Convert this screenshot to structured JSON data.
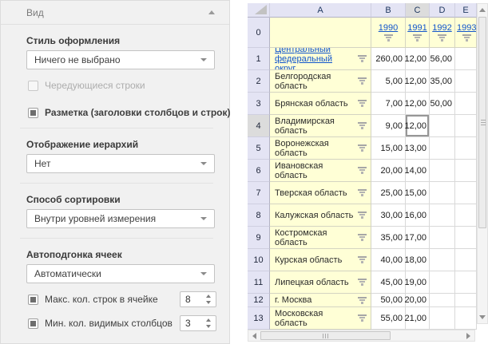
{
  "panel": {
    "title": "Вид",
    "sections": [
      {
        "label": "Стиль оформления",
        "dropdown_value": "Ничего не выбрано",
        "checkboxes": [
          {
            "label": "Чередующиеся строки",
            "checked": false,
            "disabled": true
          },
          {
            "label": "Разметка (заголовки столбцов и строк)",
            "checked": true,
            "disabled": false
          }
        ]
      },
      {
        "label": "Отображение иерархий",
        "dropdown_value": "Нет"
      },
      {
        "label": "Способ сортировки",
        "dropdown_value": "Внутри уровней измерения"
      },
      {
        "label": "Автоподгонка ячеек",
        "dropdown_value": "Автоматически",
        "spinners": [
          {
            "label": "Макс. кол. строк в ячейке",
            "value": "8",
            "checked": true
          },
          {
            "label": "Мин. кол. видимых столбцов",
            "value": "3",
            "checked": true
          }
        ]
      }
    ]
  },
  "table": {
    "column_letters": [
      "A",
      "B",
      "C",
      "D",
      "E"
    ],
    "selected_column": "C",
    "selected_row_number": "4",
    "selected_cell": {
      "row": "4",
      "col": "C"
    },
    "row_zero_number": "0",
    "year_links": [
      "1990",
      "1991",
      "1992",
      "1993"
    ],
    "rows": [
      {
        "num": "1",
        "name": "Центральный федеральный округ",
        "is_link": true,
        "values": [
          "260,00",
          "12,00",
          "56,00",
          ""
        ]
      },
      {
        "num": "2",
        "name": "Белгородская область",
        "is_link": false,
        "values": [
          "5,00",
          "12,00",
          "35,00",
          ""
        ]
      },
      {
        "num": "3",
        "name": "Брянская область",
        "is_link": false,
        "values": [
          "7,00",
          "12,00",
          "50,00",
          ""
        ]
      },
      {
        "num": "4",
        "name": "Владимирская область",
        "is_link": false,
        "values": [
          "9,00",
          "12,00",
          "",
          ""
        ]
      },
      {
        "num": "5",
        "name": "Воронежская область",
        "is_link": false,
        "values": [
          "15,00",
          "13,00",
          "",
          ""
        ]
      },
      {
        "num": "6",
        "name": "Ивановская область",
        "is_link": false,
        "values": [
          "20,00",
          "14,00",
          "",
          ""
        ]
      },
      {
        "num": "7",
        "name": "Тверская область",
        "is_link": false,
        "values": [
          "25,00",
          "15,00",
          "",
          ""
        ]
      },
      {
        "num": "8",
        "name": "Калужская область",
        "is_link": false,
        "values": [
          "30,00",
          "16,00",
          "",
          ""
        ]
      },
      {
        "num": "9",
        "name": "Костромская область",
        "is_link": false,
        "values": [
          "35,00",
          "17,00",
          "",
          ""
        ]
      },
      {
        "num": "10",
        "name": "Курская область",
        "is_link": false,
        "values": [
          "40,00",
          "18,00",
          "",
          ""
        ]
      },
      {
        "num": "11",
        "name": "Липецкая область",
        "is_link": false,
        "values": [
          "45,00",
          "19,00",
          "",
          ""
        ]
      },
      {
        "num": "12",
        "name": "г. Москва",
        "is_link": false,
        "values": [
          "50,00",
          "20,00",
          "",
          ""
        ]
      },
      {
        "num": "13",
        "name": "Московская область",
        "is_link": false,
        "values": [
          "55,00",
          "21,00",
          "",
          ""
        ]
      }
    ]
  },
  "colors": {
    "panel_bg": "#f1f1f1",
    "header_bg": "#e4e4f4",
    "header_selected_bg": "#dcdcdc",
    "cell_yellow": "#ffffd6",
    "link_blue": "#1155cc"
  }
}
